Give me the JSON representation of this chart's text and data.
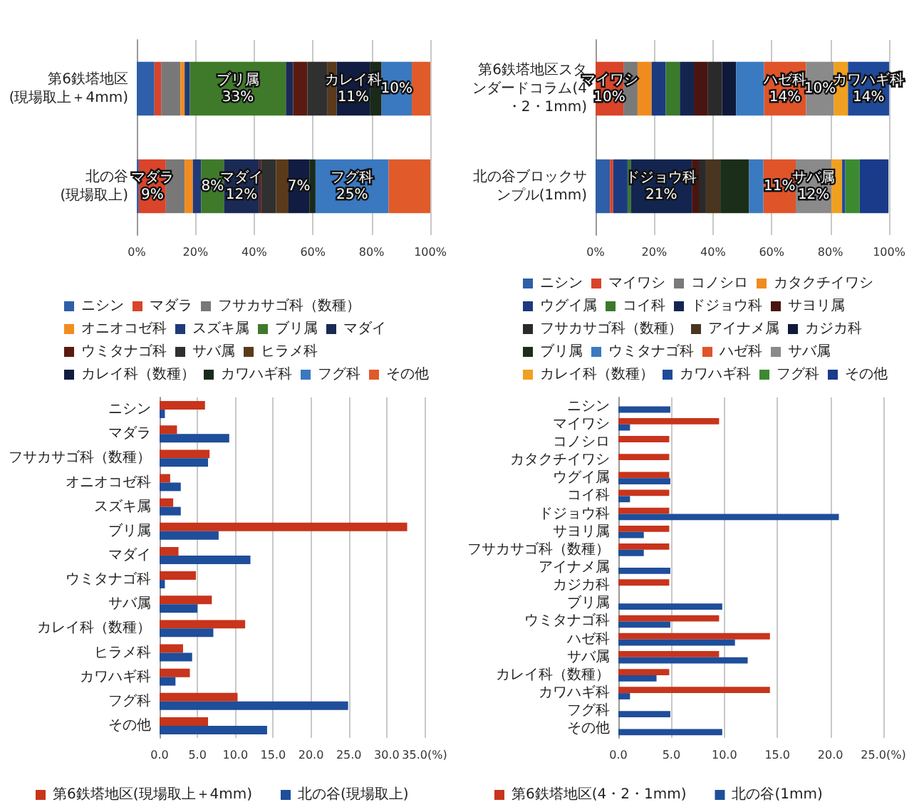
{
  "chart_data": [
    {
      "type": "bar",
      "orientation": "horizontal",
      "stacked": true,
      "grid": "x",
      "legend": "bottom",
      "categories": [
        "第6鉄塔地区\n(現場取上＋4mm)",
        "北の谷\n(現場取上)"
      ],
      "xlim": [
        0,
        100
      ],
      "xticks": [
        {
          "value": 0,
          "label": "0%"
        },
        {
          "value": 20,
          "label": "20%"
        },
        {
          "value": 40,
          "label": "40%"
        },
        {
          "value": 60,
          "label": "60%"
        },
        {
          "value": 80,
          "label": "80%"
        },
        {
          "value": 100,
          "label": "100%"
        }
      ],
      "series": [
        {
          "name": "ニシン",
          "color": "#2e5fa8",
          "values": [
            6.0,
            0.7
          ]
        },
        {
          "name": "マダラ",
          "color": "#d9442a",
          "values": [
            2.3,
            9.2
          ],
          "value_labels": [
            null,
            "マダラ\n9%"
          ]
        },
        {
          "name": "フサカサゴ科（数種）",
          "color": "#787878",
          "values": [
            6.6,
            6.4
          ]
        },
        {
          "name": "オニオコゼ科",
          "color": "#f28c1e",
          "values": [
            1.4,
            2.8
          ]
        },
        {
          "name": "スズキ属",
          "color": "#1f3a7a",
          "values": [
            1.8,
            2.8
          ]
        },
        {
          "name": "ブリ属",
          "color": "#3f7a2a",
          "values": [
            32.7,
            7.8
          ],
          "value_labels": [
            "ブリ属\n33%",
            "8%"
          ]
        },
        {
          "name": "マダイ",
          "color": "#1a2a55",
          "values": [
            2.5,
            12.0
          ],
          "value_labels": [
            null,
            "マダイ\n12%"
          ]
        },
        {
          "name": "ウミタナゴ科",
          "color": "#5a1a10",
          "values": [
            4.8,
            0.7
          ]
        },
        {
          "name": "サバ属",
          "color": "#303030",
          "values": [
            6.9,
            5.0
          ]
        },
        {
          "name": "ヒラメ科",
          "color": "#5a3a1a",
          "values": [
            3.1,
            4.3
          ]
        },
        {
          "name": "カレイ科（数種）",
          "color": "#101c40",
          "values": [
            11.3,
            7.1
          ],
          "value_labels": [
            "カレイ科\n11%",
            "7%"
          ]
        },
        {
          "name": "カワハギ科",
          "color": "#1a2a1a",
          "values": [
            4.0,
            2.1
          ]
        },
        {
          "name": "フグ科",
          "color": "#3a78c0",
          "values": [
            10.3,
            24.9
          ],
          "value_labels": [
            "10%",
            "フグ科\n25%"
          ]
        },
        {
          "name": "その他",
          "color": "#e05a2a",
          "values": [
            6.4,
            14.2
          ]
        }
      ]
    },
    {
      "type": "bar",
      "orientation": "horizontal",
      "stacked": true,
      "grid": "x",
      "legend": "bottom",
      "categories": [
        "第6鉄塔地区スタンダードコラム(4・2・1mm)",
        "北の谷ブロックサンプル(1mm)"
      ],
      "xlim": [
        0,
        100
      ],
      "xticks": [
        {
          "value": 0,
          "label": "0%"
        },
        {
          "value": 20,
          "label": "20%"
        },
        {
          "value": 40,
          "label": "40%"
        },
        {
          "value": 60,
          "label": "60%"
        },
        {
          "value": 80,
          "label": "80%"
        },
        {
          "value": 100,
          "label": "100%"
        }
      ],
      "series": [
        {
          "name": "ニシン",
          "color": "#2e5fa8",
          "values": [
            null,
            4.9
          ]
        },
        {
          "name": "マイワシ",
          "color": "#d9442a",
          "values": [
            9.5,
            1.1
          ],
          "value_labels": [
            "マイワシ\n10%",
            null
          ]
        },
        {
          "name": "コノシロ",
          "color": "#7a7a7a",
          "values": [
            4.8,
            null
          ]
        },
        {
          "name": "カタクチイワシ",
          "color": "#f08c1e",
          "values": [
            4.8,
            null
          ]
        },
        {
          "name": "ウグイ属",
          "color": "#1c3a80",
          "values": [
            4.8,
            4.9
          ]
        },
        {
          "name": "コイ科",
          "color": "#3a7a2a",
          "values": [
            4.8,
            1.1
          ]
        },
        {
          "name": "ドジョウ科",
          "color": "#13254f",
          "values": [
            4.8,
            20.8
          ],
          "value_labels": [
            null,
            "ドジョウ科\n21%"
          ]
        },
        {
          "name": "サヨリ属",
          "color": "#4a1510",
          "values": [
            4.8,
            2.4
          ]
        },
        {
          "name": "フサカサゴ科（数種）",
          "color": "#2a2a2a",
          "values": [
            4.8,
            2.4
          ]
        },
        {
          "name": "アイナメ属",
          "color": "#4a3520",
          "values": [
            null,
            4.9
          ]
        },
        {
          "name": "カジカ科",
          "color": "#0f1a3a",
          "values": [
            4.8,
            null
          ]
        },
        {
          "name": "ブリ属",
          "color": "#1a2e1a",
          "values": [
            null,
            9.8
          ]
        },
        {
          "name": "ウミタナゴ科",
          "color": "#3a7ac0",
          "values": [
            9.5,
            4.9
          ]
        },
        {
          "name": "ハゼ科",
          "color": "#e0542a",
          "values": [
            14.3,
            11.0
          ],
          "value_labels": [
            "ハゼ科\n14%",
            "11%"
          ]
        },
        {
          "name": "サバ属",
          "color": "#8a8a8a",
          "values": [
            9.5,
            12.2
          ],
          "value_labels": [
            "10%",
            "サバ属\n12%"
          ]
        },
        {
          "name": "カレイ科（数種）",
          "color": "#f0a020",
          "values": [
            4.8,
            3.6
          ]
        },
        {
          "name": "カワハギ科",
          "color": "#1f4a9a",
          "values": [
            14.3,
            1.1
          ],
          "value_labels": [
            "カワハギ科\n14%",
            null
          ]
        },
        {
          "name": "フグ科",
          "color": "#3c8a30",
          "values": [
            null,
            4.9
          ]
        },
        {
          "name": "その他",
          "color": "#1a3a8a",
          "values": [
            null,
            9.8
          ]
        }
      ]
    },
    {
      "type": "bar",
      "orientation": "horizontal",
      "grid": "x",
      "legend": "bottom",
      "categories": [
        "ニシン",
        "マダラ",
        "フサカサゴ科（数種）",
        "オニオコゼ科",
        "スズキ属",
        "ブリ属",
        "マダイ",
        "ウミタナゴ科",
        "サバ属",
        "カレイ科（数種）",
        "ヒラメ科",
        "カワハギ科",
        "フグ科",
        "その他"
      ],
      "xlim": [
        0,
        35
      ],
      "xticks": [
        {
          "value": 0,
          "label": "0.0"
        },
        {
          "value": 5,
          "label": "5.0"
        },
        {
          "value": 10,
          "label": "10.0"
        },
        {
          "value": 15,
          "label": "15.0"
        },
        {
          "value": 20,
          "label": "20.0"
        },
        {
          "value": 25,
          "label": "25.0"
        },
        {
          "value": 30,
          "label": "30.0"
        },
        {
          "value": 35,
          "label": "35.0(%)"
        }
      ],
      "series": [
        {
          "name": "第6鉄塔地区(現場取上＋4mm)",
          "color": "#c8341c",
          "values": [
            6.0,
            2.3,
            6.6,
            1.4,
            1.8,
            32.7,
            2.5,
            4.8,
            6.9,
            11.3,
            3.1,
            4.0,
            10.3,
            6.4
          ]
        },
        {
          "name": "北の谷(現場取上)",
          "color": "#1f4e9a",
          "values": [
            0.7,
            9.2,
            6.4,
            2.8,
            2.8,
            7.8,
            12.0,
            0.7,
            5.0,
            7.1,
            4.3,
            2.1,
            24.9,
            14.2
          ]
        }
      ]
    },
    {
      "type": "bar",
      "orientation": "horizontal",
      "grid": "x",
      "legend": "bottom",
      "categories": [
        "ニシン",
        "マイワシ",
        "コノシロ",
        "カタクチイワシ",
        "ウグイ属",
        "コイ科",
        "ドジョウ科",
        "サヨリ属",
        "フサカサゴ科（数種）",
        "アイナメ属",
        "カジカ科",
        "ブリ属",
        "ウミタナゴ科",
        "ハゼ科",
        "サバ属",
        "カレイ科（数種）",
        "カワハギ科",
        "フグ科",
        "その他"
      ],
      "xlim": [
        0,
        25
      ],
      "xticks": [
        {
          "value": 0,
          "label": "0.0"
        },
        {
          "value": 5,
          "label": "5.0"
        },
        {
          "value": 10,
          "label": "10.0"
        },
        {
          "value": 15,
          "label": "15.0"
        },
        {
          "value": 20,
          "label": "20.0"
        },
        {
          "value": 25,
          "label": "25.0(%)"
        }
      ],
      "series": [
        {
          "name": "第6鉄塔地区(4・2・1mm)",
          "color": "#c8341c",
          "values": [
            null,
            9.5,
            4.8,
            4.8,
            4.8,
            4.8,
            4.8,
            4.8,
            4.8,
            null,
            4.8,
            null,
            9.5,
            14.3,
            9.5,
            4.8,
            14.3,
            null,
            null
          ]
        },
        {
          "name": "北の谷(1mm)",
          "color": "#1f4e9a",
          "values": [
            4.9,
            1.1,
            null,
            null,
            4.9,
            1.1,
            20.8,
            2.4,
            2.4,
            4.9,
            null,
            9.8,
            4.9,
            11.0,
            12.2,
            3.6,
            1.1,
            4.9,
            9.8
          ]
        }
      ]
    }
  ]
}
